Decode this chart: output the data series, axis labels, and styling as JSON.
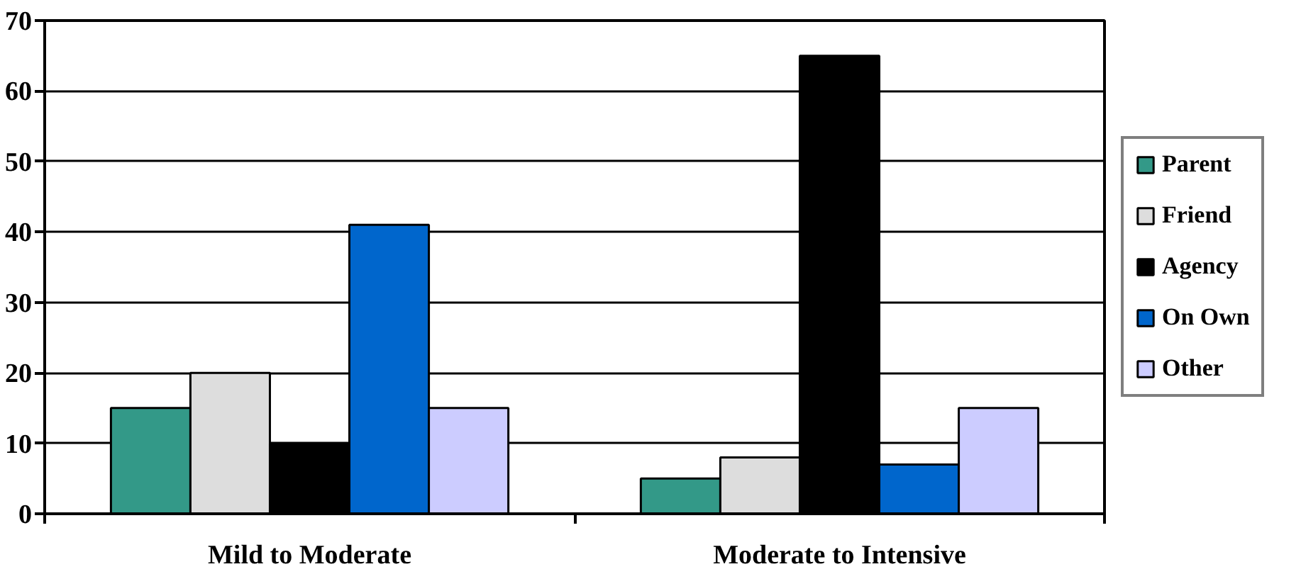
{
  "chart_data": {
    "type": "bar",
    "categories": [
      "Mild to Moderate",
      "Moderate to Intensive"
    ],
    "series": [
      {
        "name": "Parent",
        "color": "#339988",
        "values": [
          15,
          5
        ]
      },
      {
        "name": "Friend",
        "color": "#dddddd",
        "values": [
          20,
          8
        ]
      },
      {
        "name": "Agency",
        "color": "#000000",
        "values": [
          10,
          65
        ]
      },
      {
        "name": "On Own",
        "color": "#0066cc",
        "values": [
          41,
          7
        ]
      },
      {
        "name": "Other",
        "color": "#ccccff",
        "values": [
          15,
          15
        ]
      }
    ],
    "ylim": [
      0,
      70
    ],
    "yticks": [
      0,
      10,
      20,
      30,
      40,
      50,
      60,
      70
    ],
    "grid": "y",
    "legend": "right"
  }
}
